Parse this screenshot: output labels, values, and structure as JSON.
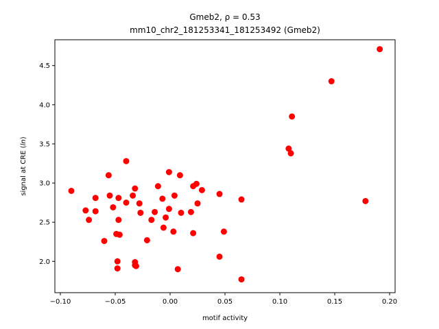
{
  "chart_data": {
    "type": "scatter",
    "title": "Gmeb2, ρ = 0.53",
    "subtitle": "mm10_chr2_181253341_181253492 (Gmeb2)",
    "xlabel": "motif activity",
    "ylabel": "signal at CRE (ln)",
    "ylabel_prefix": "signal at CRE (",
    "ylabel_italic": "ln",
    "ylabel_suffix": ")",
    "xlim": [
      -0.105,
      0.205
    ],
    "ylim": [
      1.6,
      4.83
    ],
    "xticks": [
      -0.1,
      -0.05,
      0.0,
      0.05,
      0.1,
      0.15,
      0.2
    ],
    "xtick_labels": [
      "−0.10",
      "−0.05",
      "0.00",
      "0.05",
      "0.10",
      "0.15",
      "0.20"
    ],
    "yticks": [
      2.0,
      2.5,
      3.0,
      3.5,
      4.0,
      4.5
    ],
    "ytick_labels": [
      "2.0",
      "2.5",
      "3.0",
      "3.5",
      "4.0",
      "4.5"
    ],
    "grid": false,
    "legend": "none",
    "marker_color": "#ff0000",
    "points": [
      {
        "x": -0.09,
        "y": 2.9
      },
      {
        "x": -0.077,
        "y": 2.65
      },
      {
        "x": -0.074,
        "y": 2.53
      },
      {
        "x": -0.068,
        "y": 2.81
      },
      {
        "x": -0.068,
        "y": 2.64
      },
      {
        "x": -0.06,
        "y": 2.26
      },
      {
        "x": -0.056,
        "y": 3.1
      },
      {
        "x": -0.055,
        "y": 2.84
      },
      {
        "x": -0.052,
        "y": 2.69
      },
      {
        "x": -0.049,
        "y": 2.35
      },
      {
        "x": -0.048,
        "y": 2.0
      },
      {
        "x": -0.048,
        "y": 1.91
      },
      {
        "x": -0.047,
        "y": 2.81
      },
      {
        "x": -0.047,
        "y": 2.53
      },
      {
        "x": -0.046,
        "y": 2.34
      },
      {
        "x": -0.04,
        "y": 3.28
      },
      {
        "x": -0.04,
        "y": 2.75
      },
      {
        "x": -0.034,
        "y": 2.84
      },
      {
        "x": -0.032,
        "y": 2.93
      },
      {
        "x": -0.032,
        "y": 1.99
      },
      {
        "x": -0.032,
        "y": 1.95
      },
      {
        "x": -0.031,
        "y": 1.94
      },
      {
        "x": -0.028,
        "y": 2.74
      },
      {
        "x": -0.027,
        "y": 2.62
      },
      {
        "x": -0.021,
        "y": 2.27
      },
      {
        "x": -0.017,
        "y": 2.53
      },
      {
        "x": -0.014,
        "y": 2.63
      },
      {
        "x": -0.011,
        "y": 2.96
      },
      {
        "x": -0.007,
        "y": 2.8
      },
      {
        "x": -0.006,
        "y": 2.43
      },
      {
        "x": -0.004,
        "y": 2.56
      },
      {
        "x": -0.001,
        "y": 3.14
      },
      {
        "x": -0.001,
        "y": 2.67
      },
      {
        "x": 0.003,
        "y": 2.38
      },
      {
        "x": 0.004,
        "y": 2.84
      },
      {
        "x": 0.007,
        "y": 1.9
      },
      {
        "x": 0.009,
        "y": 3.1
      },
      {
        "x": 0.01,
        "y": 2.62
      },
      {
        "x": 0.019,
        "y": 2.63
      },
      {
        "x": 0.021,
        "y": 2.96
      },
      {
        "x": 0.021,
        "y": 2.36
      },
      {
        "x": 0.024,
        "y": 2.99
      },
      {
        "x": 0.025,
        "y": 2.74
      },
      {
        "x": 0.029,
        "y": 2.91
      },
      {
        "x": 0.045,
        "y": 2.86
      },
      {
        "x": 0.045,
        "y": 2.06
      },
      {
        "x": 0.049,
        "y": 2.38
      },
      {
        "x": 0.065,
        "y": 2.79
      },
      {
        "x": 0.065,
        "y": 1.77
      },
      {
        "x": 0.108,
        "y": 3.44
      },
      {
        "x": 0.11,
        "y": 3.38
      },
      {
        "x": 0.111,
        "y": 3.85
      },
      {
        "x": 0.147,
        "y": 4.3
      },
      {
        "x": 0.178,
        "y": 2.77
      },
      {
        "x": 0.191,
        "y": 4.71
      }
    ]
  }
}
